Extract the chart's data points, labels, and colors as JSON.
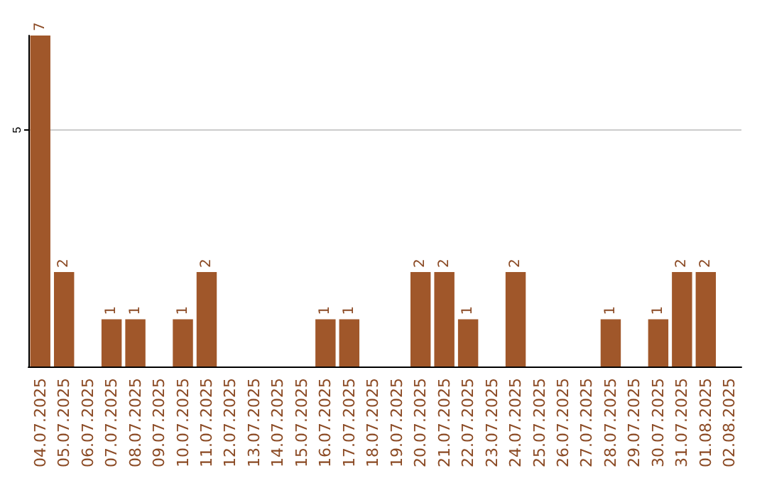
{
  "chart_data": {
    "type": "bar",
    "categories": [
      "04.07.2025",
      "05.07.2025",
      "06.07.2025",
      "07.07.2025",
      "08.07.2025",
      "09.07.2025",
      "10.07.2025",
      "11.07.2025",
      "12.07.2025",
      "13.07.2025",
      "14.07.2025",
      "15.07.2025",
      "16.07.2025",
      "17.07.2025",
      "18.07.2025",
      "19.07.2025",
      "20.07.2025",
      "21.07.2025",
      "22.07.2025",
      "23.07.2025",
      "24.07.2025",
      "25.07.2025",
      "26.07.2025",
      "27.07.2025",
      "28.07.2025",
      "29.07.2025",
      "30.07.2025",
      "31.07.2025",
      "01.08.2025",
      "02.08.2025"
    ],
    "values": [
      7,
      2,
      0,
      1,
      1,
      0,
      1,
      2,
      0,
      0,
      0,
      0,
      1,
      1,
      0,
      0,
      2,
      2,
      1,
      0,
      2,
      0,
      0,
      0,
      1,
      0,
      1,
      2,
      2,
      0
    ],
    "value_labels": [
      "7",
      "2",
      null,
      "1",
      "1",
      null,
      "1",
      "2",
      null,
      null,
      null,
      null,
      "1",
      "1",
      null,
      null,
      "2",
      "2",
      "1",
      null,
      "2",
      null,
      null,
      null,
      "1",
      null,
      "1",
      "2",
      "2",
      null
    ],
    "color": "#a0572a",
    "ylim": [
      0,
      7
    ],
    "yticks": [
      5
    ],
    "grid": "y"
  }
}
